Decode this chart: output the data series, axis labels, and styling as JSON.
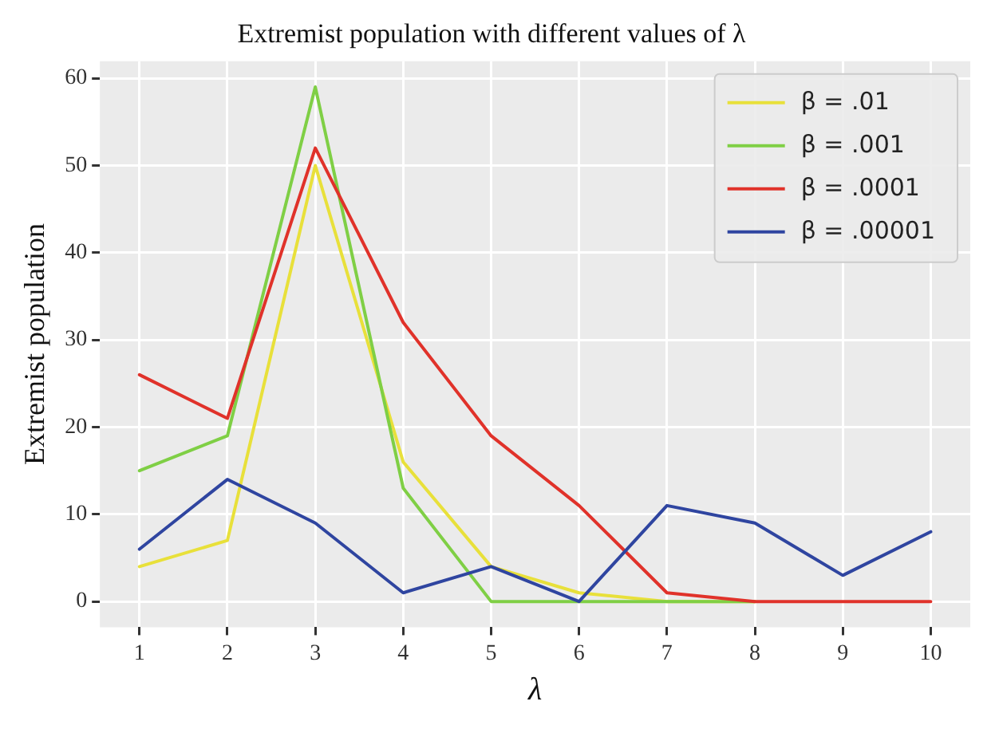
{
  "chart_data": {
    "type": "line",
    "title": "Extremist population with different values of λ",
    "xlabel": "λ",
    "ylabel": "Extremist population",
    "x": [
      1,
      2,
      3,
      4,
      5,
      6,
      7,
      8,
      9,
      10
    ],
    "series": [
      {
        "name": "β = .01",
        "color": "#e8e03a",
        "values": [
          4,
          7,
          50,
          16,
          4,
          1,
          0,
          0,
          null,
          null
        ]
      },
      {
        "name": "β = .001",
        "color": "#7fcf45",
        "values": [
          15,
          19,
          59,
          13,
          0,
          0,
          0,
          0,
          null,
          null
        ]
      },
      {
        "name": "β = .0001",
        "color": "#e0322a",
        "values": [
          26,
          21,
          52,
          32,
          19,
          11,
          1,
          0,
          0,
          0
        ]
      },
      {
        "name": "β = .00001",
        "color": "#2f45a0",
        "values": [
          6,
          14,
          9,
          1,
          4,
          0,
          11,
          9,
          3,
          8
        ]
      }
    ],
    "xlim": [
      0.55,
      10.45
    ],
    "ylim": [
      -2.95,
      61.95
    ],
    "xticks": [
      1,
      2,
      3,
      4,
      5,
      6,
      7,
      8,
      9,
      10
    ],
    "yticks": [
      0,
      10,
      20,
      30,
      40,
      50,
      60
    ],
    "grid": true,
    "legend": "top right",
    "marker": "none",
    "line_style": "solid"
  }
}
